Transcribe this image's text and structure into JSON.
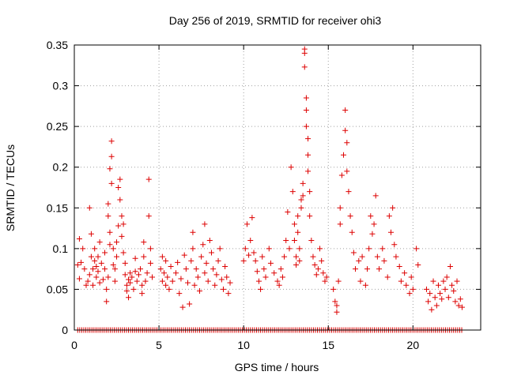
{
  "chart_data": {
    "type": "scatter",
    "title": "Day 256 of 2019, SRMTID for receiver ohi3",
    "xlabel": "GPS time / hours",
    "ylabel": "SRMTID / TECUs",
    "xlim": [
      0,
      24
    ],
    "ylim": [
      0,
      0.35
    ],
    "xticks": [
      0,
      5,
      10,
      15,
      20
    ],
    "xtick_labels": [
      "0",
      "5",
      "10",
      "15",
      "20"
    ],
    "yticks": [
      0,
      0.05,
      0.1,
      0.15,
      0.2,
      0.25,
      0.3,
      0.35
    ],
    "ytick_labels": [
      "0",
      "0.05",
      "0.1",
      "0.15",
      "0.2",
      "0.25",
      "0.3",
      "0.35"
    ],
    "grid": true,
    "marker": "+",
    "color": "#dd0000",
    "series": [
      {
        "name": "SRMTID",
        "points": [
          [
            0.2,
            0.08
          ],
          [
            0.3,
            0.112
          ],
          [
            0.3,
            0.063
          ],
          [
            0.4,
            0.083
          ],
          [
            0.5,
            0.1
          ],
          [
            0.6,
            0.075
          ],
          [
            0.7,
            0.055
          ],
          [
            0.8,
            0.06
          ],
          [
            0.9,
            0.068
          ],
          [
            0.9,
            0.15
          ],
          [
            1.0,
            0.09
          ],
          [
            1.0,
            0.118
          ],
          [
            1.1,
            0.075
          ],
          [
            1.1,
            0.055
          ],
          [
            1.2,
            0.085
          ],
          [
            1.2,
            0.1
          ],
          [
            1.3,
            0.065
          ],
          [
            1.3,
            0.078
          ],
          [
            1.4,
            0.09
          ],
          [
            1.4,
            0.072
          ],
          [
            1.5,
            0.058
          ],
          [
            1.5,
            0.108
          ],
          [
            1.6,
            0.082
          ],
          [
            1.7,
            0.062
          ],
          [
            1.8,
            0.075
          ],
          [
            1.8,
            0.095
          ],
          [
            1.9,
            0.05
          ],
          [
            1.9,
            0.035
          ],
          [
            2.0,
            0.065
          ],
          [
            2.0,
            0.14
          ],
          [
            2.0,
            0.155
          ],
          [
            2.1,
            0.12
          ],
          [
            2.1,
            0.105
          ],
          [
            2.1,
            0.198
          ],
          [
            2.2,
            0.232
          ],
          [
            2.2,
            0.213
          ],
          [
            2.2,
            0.18
          ],
          [
            2.3,
            0.1
          ],
          [
            2.3,
            0.08
          ],
          [
            2.4,
            0.075
          ],
          [
            2.4,
            0.06
          ],
          [
            2.5,
            0.09
          ],
          [
            2.5,
            0.108
          ],
          [
            2.6,
            0.128
          ],
          [
            2.6,
            0.175
          ],
          [
            2.7,
            0.185
          ],
          [
            2.7,
            0.16
          ],
          [
            2.8,
            0.14
          ],
          [
            2.8,
            0.115
          ],
          [
            2.9,
            0.13
          ],
          [
            2.9,
            0.095
          ],
          [
            3.0,
            0.082
          ],
          [
            3.0,
            0.068
          ],
          [
            3.1,
            0.055
          ],
          [
            3.1,
            0.048
          ],
          [
            3.2,
            0.062
          ],
          [
            3.2,
            0.04
          ],
          [
            3.3,
            0.07
          ],
          [
            3.3,
            0.058
          ],
          [
            3.4,
            0.065
          ],
          [
            3.5,
            0.05
          ],
          [
            3.6,
            0.072
          ],
          [
            3.6,
            0.088
          ],
          [
            3.7,
            0.06
          ],
          [
            3.8,
            0.068
          ],
          [
            3.9,
            0.075
          ],
          [
            4.0,
            0.055
          ],
          [
            4.0,
            0.045
          ],
          [
            4.1,
            0.09
          ],
          [
            4.1,
            0.108
          ],
          [
            4.2,
            0.06
          ],
          [
            4.3,
            0.07
          ],
          [
            4.4,
            0.185
          ],
          [
            4.4,
            0.14
          ],
          [
            4.5,
            0.082
          ],
          [
            4.5,
            0.1
          ],
          [
            4.6,
            0.065
          ],
          [
            5.1,
            0.075
          ],
          [
            5.2,
            0.06
          ],
          [
            5.2,
            0.09
          ],
          [
            5.3,
            0.07
          ],
          [
            5.4,
            0.055
          ],
          [
            5.4,
            0.085
          ],
          [
            5.5,
            0.065
          ],
          [
            5.6,
            0.05
          ],
          [
            5.7,
            0.078
          ],
          [
            5.8,
            0.06
          ],
          [
            6.0,
            0.07
          ],
          [
            6.1,
            0.083
          ],
          [
            6.2,
            0.045
          ],
          [
            6.3,
            0.063
          ],
          [
            6.4,
            0.028
          ],
          [
            6.5,
            0.092
          ],
          [
            6.6,
            0.075
          ],
          [
            6.7,
            0.058
          ],
          [
            6.8,
            0.032
          ],
          [
            6.9,
            0.085
          ],
          [
            7.0,
            0.12
          ],
          [
            7.0,
            0.1
          ],
          [
            7.1,
            0.055
          ],
          [
            7.2,
            0.075
          ],
          [
            7.3,
            0.065
          ],
          [
            7.4,
            0.048
          ],
          [
            7.5,
            0.09
          ],
          [
            7.6,
            0.105
          ],
          [
            7.7,
            0.13
          ],
          [
            7.7,
            0.07
          ],
          [
            7.8,
            0.082
          ],
          [
            7.9,
            0.06
          ],
          [
            8.0,
            0.11
          ],
          [
            8.1,
            0.095
          ],
          [
            8.2,
            0.075
          ],
          [
            8.3,
            0.055
          ],
          [
            8.4,
            0.068
          ],
          [
            8.5,
            0.085
          ],
          [
            8.6,
            0.1
          ],
          [
            8.7,
            0.062
          ],
          [
            8.8,
            0.05
          ],
          [
            8.9,
            0.078
          ],
          [
            9.0,
            0.065
          ],
          [
            9.1,
            0.045
          ],
          [
            9.2,
            0.058
          ],
          [
            10.0,
            0.085
          ],
          [
            10.1,
            0.1
          ],
          [
            10.2,
            0.13
          ],
          [
            10.3,
            0.092
          ],
          [
            10.4,
            0.11
          ],
          [
            10.5,
            0.138
          ],
          [
            10.6,
            0.095
          ],
          [
            10.7,
            0.085
          ],
          [
            10.8,
            0.072
          ],
          [
            10.9,
            0.06
          ],
          [
            11.0,
            0.05
          ],
          [
            11.1,
            0.09
          ],
          [
            11.2,
            0.075
          ],
          [
            11.3,
            0.065
          ],
          [
            11.5,
            0.1
          ],
          [
            11.6,
            0.082
          ],
          [
            11.8,
            0.07
          ],
          [
            12.0,
            0.06
          ],
          [
            12.1,
            0.055
          ],
          [
            12.2,
            0.075
          ],
          [
            12.3,
            0.065
          ],
          [
            12.4,
            0.09
          ],
          [
            12.5,
            0.11
          ],
          [
            12.6,
            0.145
          ],
          [
            12.7,
            0.1
          ],
          [
            12.8,
            0.2
          ],
          [
            12.9,
            0.17
          ],
          [
            13.0,
            0.13
          ],
          [
            13.0,
            0.11
          ],
          [
            13.1,
            0.09
          ],
          [
            13.1,
            0.08
          ],
          [
            13.2,
            0.14
          ],
          [
            13.2,
            0.12
          ],
          [
            13.3,
            0.1
          ],
          [
            13.3,
            0.085
          ],
          [
            13.4,
            0.15
          ],
          [
            13.4,
            0.16
          ],
          [
            13.5,
            0.18
          ],
          [
            13.5,
            0.165
          ],
          [
            13.6,
            0.345
          ],
          [
            13.6,
            0.34
          ],
          [
            13.6,
            0.323
          ],
          [
            13.7,
            0.285
          ],
          [
            13.7,
            0.27
          ],
          [
            13.7,
            0.25
          ],
          [
            13.8,
            0.235
          ],
          [
            13.8,
            0.215
          ],
          [
            13.8,
            0.195
          ],
          [
            13.9,
            0.17
          ],
          [
            13.9,
            0.14
          ],
          [
            14.0,
            0.11
          ],
          [
            14.1,
            0.09
          ],
          [
            14.2,
            0.08
          ],
          [
            14.3,
            0.068
          ],
          [
            14.4,
            0.075
          ],
          [
            14.5,
            0.1
          ],
          [
            14.6,
            0.085
          ],
          [
            14.7,
            0.07
          ],
          [
            14.8,
            0.06
          ],
          [
            14.9,
            0.065
          ],
          [
            15.3,
            0.05
          ],
          [
            15.4,
            0.035
          ],
          [
            15.5,
            0.03
          ],
          [
            15.5,
            0.022
          ],
          [
            15.6,
            0.06
          ],
          [
            15.7,
            0.13
          ],
          [
            15.7,
            0.15
          ],
          [
            15.8,
            0.19
          ],
          [
            15.9,
            0.215
          ],
          [
            16.0,
            0.245
          ],
          [
            16.0,
            0.27
          ],
          [
            16.1,
            0.23
          ],
          [
            16.1,
            0.195
          ],
          [
            16.2,
            0.17
          ],
          [
            16.3,
            0.14
          ],
          [
            16.4,
            0.12
          ],
          [
            16.5,
            0.095
          ],
          [
            16.6,
            0.075
          ],
          [
            16.8,
            0.085
          ],
          [
            16.9,
            0.06
          ],
          [
            17.0,
            0.09
          ],
          [
            17.2,
            0.055
          ],
          [
            17.3,
            0.075
          ],
          [
            17.4,
            0.1
          ],
          [
            17.5,
            0.14
          ],
          [
            17.6,
            0.118
          ],
          [
            17.7,
            0.13
          ],
          [
            17.8,
            0.165
          ],
          [
            17.9,
            0.09
          ],
          [
            18.0,
            0.075
          ],
          [
            18.2,
            0.1
          ],
          [
            18.3,
            0.085
          ],
          [
            18.5,
            0.065
          ],
          [
            18.6,
            0.14
          ],
          [
            18.7,
            0.12
          ],
          [
            18.8,
            0.15
          ],
          [
            18.9,
            0.105
          ],
          [
            19.0,
            0.09
          ],
          [
            19.2,
            0.078
          ],
          [
            19.3,
            0.06
          ],
          [
            19.5,
            0.07
          ],
          [
            19.6,
            0.055
          ],
          [
            19.8,
            0.045
          ],
          [
            19.9,
            0.065
          ],
          [
            20.0,
            0.05
          ],
          [
            20.2,
            0.1
          ],
          [
            20.3,
            0.08
          ],
          [
            20.8,
            0.05
          ],
          [
            20.9,
            0.035
          ],
          [
            21.0,
            0.045
          ],
          [
            21.1,
            0.025
          ],
          [
            21.2,
            0.06
          ],
          [
            21.3,
            0.04
          ],
          [
            21.4,
            0.03
          ],
          [
            21.5,
            0.055
          ],
          [
            21.6,
            0.045
          ],
          [
            21.7,
            0.038
          ],
          [
            21.8,
            0.06
          ],
          [
            21.9,
            0.05
          ],
          [
            22.0,
            0.065
          ],
          [
            22.1,
            0.04
          ],
          [
            22.2,
            0.078
          ],
          [
            22.3,
            0.055
          ],
          [
            22.4,
            0.048
          ],
          [
            22.5,
            0.035
          ],
          [
            22.6,
            0.06
          ],
          [
            22.7,
            0.03
          ],
          [
            22.8,
            0.038
          ],
          [
            22.9,
            0.028
          ]
        ]
      }
    ],
    "zero_band_hours": [
      0.2,
      23.0
    ]
  }
}
